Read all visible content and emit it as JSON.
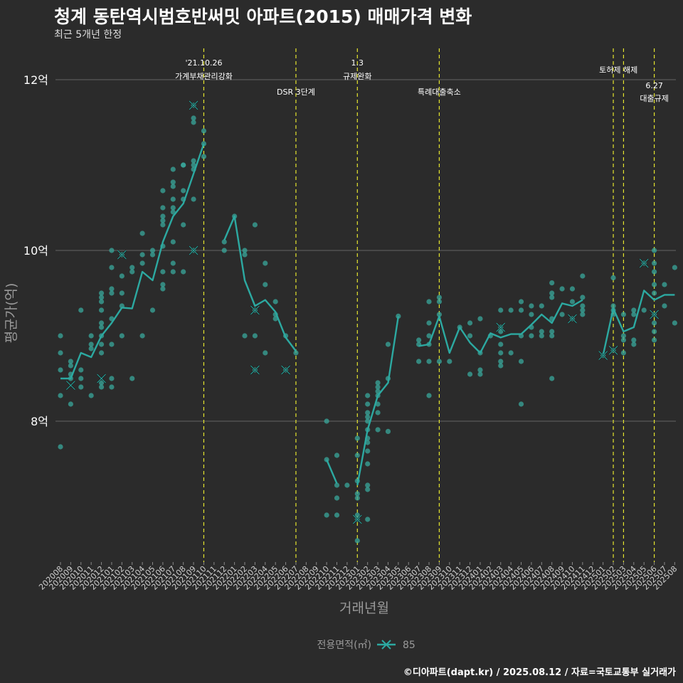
{
  "title": "청계 동탄역시범호반써밋 아파트(2015) 매매가격 변화",
  "subtitle": "최근 5개년 한정",
  "caption": "©디아파트(dapt.kr) / 2025.08.12 / 자료=국토교통부 실거래가",
  "colors": {
    "background": "#2b2b2b",
    "series": "#2ca9a1",
    "point": "#3aa89c",
    "event_line": "#e5e52e",
    "grid": "#5a5a5a",
    "text": "#ffffff",
    "axis_title": "#9a9a9a"
  },
  "chart_data": {
    "type": "line",
    "xlabel": "거래년월",
    "ylabel": "평균가(억)",
    "ylim": [
      6.35,
      12.4
    ],
    "yticks": [
      8,
      10,
      12
    ],
    "ytick_labels": [
      "8억",
      "10억",
      "12억"
    ],
    "grid": true,
    "legend": {
      "title": "전용면적(㎡)",
      "position": "bottom",
      "entries": [
        "85"
      ]
    },
    "categories": [
      "202008",
      "202009",
      "202010",
      "202011",
      "202012",
      "202101",
      "202102",
      "202103",
      "202104",
      "202105",
      "202106",
      "202107",
      "202108",
      "202109",
      "202110",
      "202111",
      "202112",
      "202201",
      "202202",
      "202203",
      "202204",
      "202205",
      "202206",
      "202207",
      "202208",
      "202209",
      "202210",
      "202211",
      "202212",
      "202301",
      "202302",
      "202303",
      "202304",
      "202305",
      "202306",
      "202307",
      "202308",
      "202309",
      "202310",
      "202311",
      "202312",
      "202401",
      "202402",
      "202403",
      "202404",
      "202405",
      "202406",
      "202407",
      "202408",
      "202409",
      "202410",
      "202411",
      "202412",
      "202501",
      "202502",
      "202503",
      "202504",
      "202505",
      "202506",
      "202507",
      "202508"
    ],
    "series": [
      {
        "name": "85",
        "values": [
          8.5,
          8.5,
          8.8,
          8.75,
          9.0,
          9.15,
          9.33,
          9.32,
          9.75,
          9.65,
          10.1,
          10.4,
          10.55,
          10.9,
          11.25,
          null,
          10.12,
          10.4,
          9.65,
          9.35,
          9.42,
          9.28,
          8.98,
          8.82,
          null,
          null,
          7.55,
          7.27,
          null,
          7.25,
          7.9,
          8.3,
          8.45,
          9.23,
          null,
          8.88,
          8.9,
          9.23,
          8.8,
          9.1,
          8.92,
          8.8,
          9.03,
          8.98,
          9.02,
          9.02,
          9.13,
          9.25,
          9.15,
          9.38,
          9.35,
          9.42,
          null,
          8.77,
          9.32,
          9.05,
          9.1,
          9.53,
          9.42,
          9.48,
          9.48
        ],
        "max_markers": [
          {
            "x": "202009",
            "y": 8.42
          },
          {
            "x": "202012",
            "y": 8.5
          },
          {
            "x": "202102",
            "y": 9.95
          },
          {
            "x": "202109",
            "y": 11.7
          },
          {
            "x": "202109",
            "y": 10.0
          },
          {
            "x": "202203",
            "y": 9.3
          },
          {
            "x": "202203",
            "y": 8.6
          },
          {
            "x": "202206",
            "y": 8.6
          },
          {
            "x": "202301",
            "y": 6.85
          },
          {
            "x": "202403",
            "y": 9.1
          },
          {
            "x": "202410",
            "y": 9.2
          },
          {
            "x": "202501",
            "y": 8.77
          },
          {
            "x": "202502",
            "y": 8.83
          },
          {
            "x": "202505",
            "y": 9.85
          },
          {
            "x": "202506",
            "y": 9.25
          }
        ]
      }
    ],
    "transactions": [
      {
        "x": "202008",
        "y": [
          7.7,
          8.3,
          8.6,
          8.8,
          9.0
        ]
      },
      {
        "x": "202009",
        "y": [
          8.2,
          8.5,
          8.55,
          8.65,
          8.7
        ]
      },
      {
        "x": "202010",
        "y": [
          8.4,
          8.5,
          8.6,
          9.3
        ]
      },
      {
        "x": "202011",
        "y": [
          8.3,
          8.85,
          8.9,
          9.0
        ]
      },
      {
        "x": "202012",
        "y": [
          8.4,
          8.45,
          8.8,
          8.9,
          9.0,
          9.1,
          9.15,
          9.3,
          9.4,
          9.45,
          9.5
        ]
      },
      {
        "x": "202101",
        "y": [
          8.4,
          8.5,
          8.9,
          9.2,
          9.5,
          9.55,
          9.8,
          10.0
        ]
      },
      {
        "x": "202102",
        "y": [
          9.0,
          9.35,
          9.5,
          9.7,
          9.95
        ]
      },
      {
        "x": "202103",
        "y": [
          8.5,
          9.75,
          9.8
        ]
      },
      {
        "x": "202104",
        "y": [
          9.0,
          9.85,
          9.95,
          10.2
        ]
      },
      {
        "x": "202105",
        "y": [
          9.3,
          9.95,
          10.0
        ]
      },
      {
        "x": "202106",
        "y": [
          9.55,
          9.6,
          9.75,
          10.05,
          10.3,
          10.35,
          10.4,
          10.5,
          10.7
        ]
      },
      {
        "x": "202107",
        "y": [
          9.75,
          9.85,
          10.1,
          10.45,
          10.5,
          10.6,
          10.75,
          10.8,
          10.95
        ]
      },
      {
        "x": "202108",
        "y": [
          9.75,
          10.3,
          10.6,
          10.7,
          11.0,
          11.0
        ]
      },
      {
        "x": "202109",
        "y": [
          10.0,
          10.6,
          10.95,
          11.0,
          11.05,
          11.5,
          11.55,
          11.7
        ]
      },
      {
        "x": "202110",
        "y": [
          11.1,
          11.25,
          11.4
        ]
      },
      {
        "x": "202112",
        "y": [
          10.0,
          10.1
        ]
      },
      {
        "x": "202201",
        "y": [
          10.4
        ]
      },
      {
        "x": "202202",
        "y": [
          9.0,
          9.95,
          10.0
        ]
      },
      {
        "x": "202203",
        "y": [
          8.6,
          9.0,
          9.3,
          10.3
        ]
      },
      {
        "x": "202204",
        "y": [
          8.8,
          9.6,
          9.85
        ]
      },
      {
        "x": "202205",
        "y": [
          9.2,
          9.25,
          9.4
        ]
      },
      {
        "x": "202206",
        "y": [
          8.6,
          9.0
        ]
      },
      {
        "x": "202207",
        "y": [
          8.8
        ]
      },
      {
        "x": "202210",
        "y": [
          6.9,
          7.55,
          8.0
        ]
      },
      {
        "x": "202211",
        "y": [
          6.9,
          7.1,
          7.25,
          7.6
        ]
      },
      {
        "x": "202212",
        "y": [
          7.25
        ]
      },
      {
        "x": "202301",
        "y": [
          6.6,
          6.85,
          6.9,
          7.1,
          7.15,
          7.3,
          7.6,
          7.8
        ]
      },
      {
        "x": "202302",
        "y": [
          6.85,
          7.2,
          7.25,
          7.5,
          7.65,
          7.75,
          7.8,
          7.9,
          8.0,
          8.05,
          8.1,
          8.2,
          8.3
        ]
      },
      {
        "x": "202303",
        "y": [
          7.9,
          8.1,
          8.2,
          8.3,
          8.35,
          8.4,
          8.45
        ]
      },
      {
        "x": "202304",
        "y": [
          7.88,
          8.5,
          8.9
        ]
      },
      {
        "x": "202305",
        "y": [
          9.23
        ]
      },
      {
        "x": "202307",
        "y": [
          8.7,
          8.9,
          8.95
        ]
      },
      {
        "x": "202308",
        "y": [
          8.3,
          8.7,
          8.9,
          9.0,
          9.15,
          9.4
        ]
      },
      {
        "x": "202309",
        "y": [
          8.7,
          9.25,
          9.4,
          9.45
        ]
      },
      {
        "x": "202310",
        "y": [
          8.7
        ]
      },
      {
        "x": "202311",
        "y": [
          9.1
        ]
      },
      {
        "x": "202312",
        "y": [
          8.55,
          9.0,
          9.15
        ]
      },
      {
        "x": "202401",
        "y": [
          8.55,
          8.6,
          8.8,
          9.2
        ]
      },
      {
        "x": "202402",
        "y": [
          9.0
        ]
      },
      {
        "x": "202403",
        "y": [
          8.65,
          8.7,
          8.8,
          8.9,
          9.05,
          9.1,
          9.3
        ]
      },
      {
        "x": "202404",
        "y": [
          8.8,
          9.3
        ]
      },
      {
        "x": "202405",
        "y": [
          8.2,
          8.7,
          9.0,
          9.3,
          9.4
        ]
      },
      {
        "x": "202406",
        "y": [
          9.0,
          9.1,
          9.25,
          9.35
        ]
      },
      {
        "x": "202407",
        "y": [
          9.0,
          9.05,
          9.35
        ]
      },
      {
        "x": "202408",
        "y": [
          8.5,
          9.0,
          9.05,
          9.2,
          9.45,
          9.5,
          9.62
        ]
      },
      {
        "x": "202409",
        "y": [
          9.25,
          9.55
        ]
      },
      {
        "x": "202410",
        "y": [
          9.2,
          9.4,
          9.55
        ]
      },
      {
        "x": "202411",
        "y": [
          9.25,
          9.3,
          9.35,
          9.45,
          9.7
        ]
      },
      {
        "x": "202501",
        "y": [
          8.77
        ]
      },
      {
        "x": "202502",
        "y": [
          8.83,
          9.25,
          9.3,
          9.35,
          9.68
        ]
      },
      {
        "x": "202503",
        "y": [
          8.8,
          8.95,
          9.0,
          9.25
        ]
      },
      {
        "x": "202504",
        "y": [
          8.9,
          8.95,
          9.25,
          9.3
        ]
      },
      {
        "x": "202505",
        "y": [
          9.3,
          9.85
        ]
      },
      {
        "x": "202506",
        "y": [
          8.95,
          9.05,
          9.15,
          9.25,
          9.5,
          9.6,
          9.75,
          9.85,
          10.0
        ]
      },
      {
        "x": "202507",
        "y": [
          9.35,
          9.6
        ]
      },
      {
        "x": "202508",
        "y": [
          9.15,
          9.8
        ]
      }
    ],
    "events": [
      {
        "x": "202110",
        "lines": [
          "'21.10.26",
          "가계부채관리강화"
        ],
        "level": 1
      },
      {
        "x": "202207",
        "lines": [
          "DSR 3단계"
        ],
        "level": 2
      },
      {
        "x": "202301",
        "lines": [
          "1.3",
          "규제완화"
        ],
        "level": 1
      },
      {
        "x": "202309",
        "lines": [
          "특례대출축소"
        ],
        "level": 2
      },
      {
        "x": "202502",
        "lines": [],
        "level": 1
      },
      {
        "x": "202503",
        "lines": [
          "토허제 해제"
        ],
        "level": 1,
        "x_between": [
          "202502",
          "202503"
        ]
      },
      {
        "x": "202506",
        "lines": [
          "6.27",
          "대출규제"
        ],
        "level": 3
      }
    ]
  }
}
